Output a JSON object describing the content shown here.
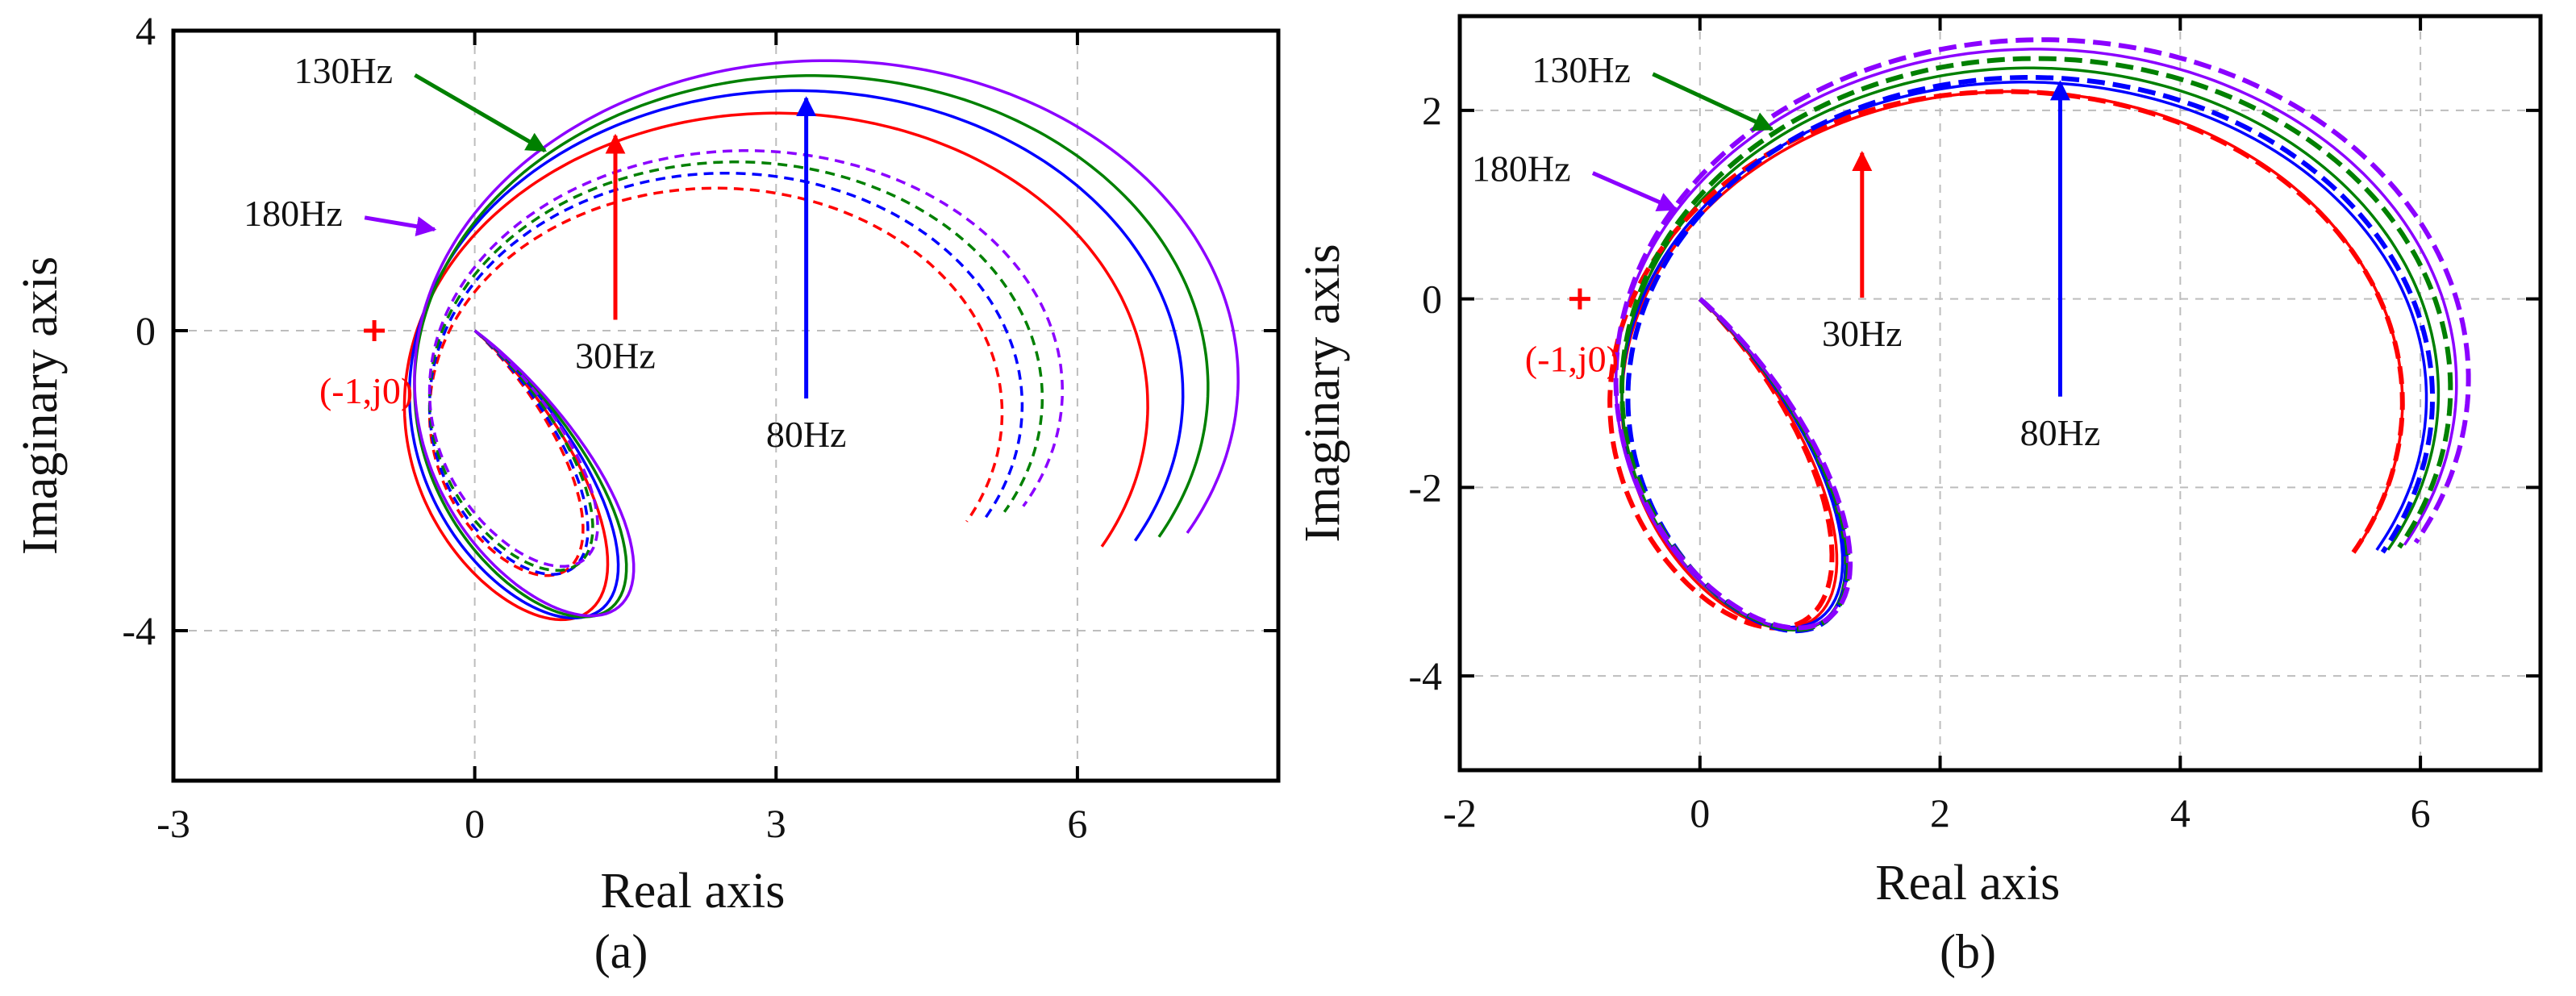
{
  "chart_data": [
    {
      "type": "line",
      "panel": "a",
      "caption": "(a)",
      "xlabel": "Real axis",
      "ylabel": "Imaginary axis",
      "xlim": [
        -3,
        8
      ],
      "ylim": [
        -6,
        4
      ],
      "xticks": [
        -3,
        0,
        3,
        6
      ],
      "xtick_labels": [
        "-3",
        "0",
        "3",
        "6"
      ],
      "yticks": [
        -4,
        0,
        4
      ],
      "ytick_labels": [
        "-4",
        "0",
        "4"
      ],
      "grid": true,
      "critical_point": {
        "x": -1,
        "y": 0,
        "label": "(-1,j0)",
        "color": "#ff0000"
      },
      "series": [
        {
          "name": "30Hz",
          "style": "solid",
          "color": "#ff0000",
          "center": [
            3.0,
            -1.0
          ],
          "rx": 3.7,
          "ry": 3.9
        },
        {
          "name": "80Hz",
          "style": "solid",
          "color": "#0000ff",
          "center": [
            3.2,
            -0.85
          ],
          "rx": 3.85,
          "ry": 4.05
        },
        {
          "name": "130Hz",
          "style": "solid",
          "color": "#008000",
          "center": [
            3.35,
            -0.75
          ],
          "rx": 3.95,
          "ry": 4.15
        },
        {
          "name": "180Hz",
          "style": "solid",
          "color": "#8b00ff",
          "center": [
            3.5,
            -0.65
          ],
          "rx": 4.1,
          "ry": 4.25
        },
        {
          "name": "30Hz",
          "style": "dashed",
          "color": "#ff0000",
          "center": [
            2.4,
            -1.1
          ],
          "rx": 2.85,
          "ry": 3.0
        },
        {
          "name": "80Hz",
          "style": "dashed",
          "color": "#0000ff",
          "center": [
            2.5,
            -1.0
          ],
          "rx": 2.95,
          "ry": 3.1
        },
        {
          "name": "130Hz",
          "style": "dashed",
          "color": "#008000",
          "center": [
            2.6,
            -0.9
          ],
          "rx": 3.05,
          "ry": 3.15
        },
        {
          "name": "180Hz",
          "style": "dashed",
          "color": "#8b00ff",
          "center": [
            2.7,
            -0.8
          ],
          "rx": 3.15,
          "ry": 3.2
        }
      ],
      "annotations": [
        {
          "text": "130Hz",
          "color": "#008000",
          "text_at": [
            -1.8,
            3.3
          ],
          "tip": [
            0.7,
            2.4
          ]
        },
        {
          "text": "180Hz",
          "color": "#8b00ff",
          "text_at": [
            -2.3,
            1.4
          ],
          "tip": [
            -0.4,
            1.35
          ]
        },
        {
          "text": "30Hz",
          "color": "#ff0000",
          "text_at": [
            1.4,
            -0.5
          ],
          "tip": [
            1.4,
            2.6
          ]
        },
        {
          "text": "80Hz",
          "color": "#0000ff",
          "text_at": [
            3.3,
            -1.55
          ],
          "tip": [
            3.3,
            3.1
          ]
        }
      ]
    },
    {
      "type": "line",
      "panel": "b",
      "caption": "(b)",
      "xlabel": "Real axis",
      "ylabel": "Imaginary axis",
      "xlim": [
        -2,
        7
      ],
      "ylim": [
        -5,
        3
      ],
      "xticks": [
        -2,
        0,
        2,
        4,
        6
      ],
      "xtick_labels": [
        "-2",
        "0",
        "2",
        "4",
        "6"
      ],
      "yticks": [
        -4,
        -2,
        0,
        2
      ],
      "ytick_labels": [
        "-4",
        "-2",
        "0",
        "2"
      ],
      "grid": true,
      "critical_point": {
        "x": -1,
        "y": 0,
        "label": "(-1,j0)",
        "color": "#ff0000"
      },
      "series": [
        {
          "name": "30Hz",
          "style": "solid",
          "color": "#ff0000",
          "center": [
            2.6,
            -1.1
          ],
          "rx": 3.25,
          "ry": 3.3
        },
        {
          "name": "80Hz",
          "style": "solid",
          "color": "#0000ff",
          "center": [
            2.7,
            -1.05
          ],
          "rx": 3.35,
          "ry": 3.35
        },
        {
          "name": "130Hz",
          "style": "solid",
          "color": "#008000",
          "center": [
            2.75,
            -1.0
          ],
          "rx": 3.4,
          "ry": 3.45
        },
        {
          "name": "180Hz",
          "style": "solid",
          "color": "#8b00ff",
          "center": [
            2.8,
            -0.9
          ],
          "rx": 3.5,
          "ry": 3.55
        },
        {
          "name": "30Hz",
          "style": "dashed",
          "color": "#ff0000",
          "center": [
            2.55,
            -1.1
          ],
          "rx": 3.3,
          "ry": 3.3
        },
        {
          "name": "80Hz",
          "style": "dashed",
          "color": "#0000ff",
          "center": [
            2.75,
            -1.05
          ],
          "rx": 3.35,
          "ry": 3.4
        },
        {
          "name": "130Hz",
          "style": "dashed",
          "color": "#008000",
          "center": [
            2.8,
            -0.95
          ],
          "rx": 3.45,
          "ry": 3.5
        },
        {
          "name": "180Hz",
          "style": "dashed",
          "color": "#8b00ff",
          "center": [
            2.85,
            -0.85
          ],
          "rx": 3.55,
          "ry": 3.6
        }
      ],
      "annotations": [
        {
          "text": "130Hz",
          "color": "#008000",
          "text_at": [
            -1.4,
            2.3
          ],
          "tip": [
            0.6,
            1.8
          ]
        },
        {
          "text": "180Hz",
          "color": "#8b00ff",
          "text_at": [
            -1.9,
            1.25
          ],
          "tip": [
            -0.2,
            0.95
          ]
        },
        {
          "text": "30Hz",
          "color": "#ff0000",
          "text_at": [
            1.35,
            -0.5
          ],
          "tip": [
            1.35,
            1.55
          ]
        },
        {
          "text": "80Hz",
          "color": "#0000ff",
          "text_at": [
            3.0,
            -1.55
          ],
          "tip": [
            3.0,
            2.3
          ]
        }
      ]
    }
  ]
}
